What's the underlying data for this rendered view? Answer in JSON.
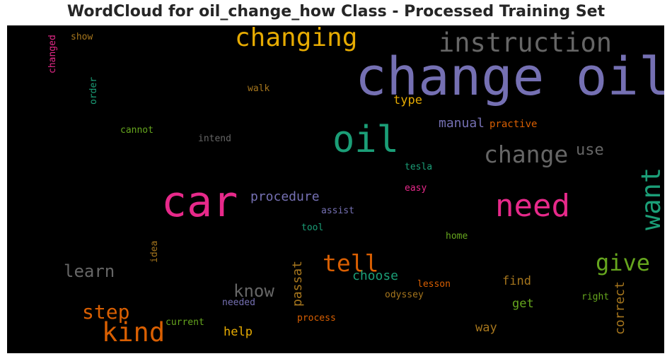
{
  "title": "WordCloud for oil_change_how Class - Processed Training Set",
  "colors": {
    "purple": "#7570b3",
    "pink": "#e7298a",
    "teal": "#1b9e77",
    "orange": "#d95f02",
    "gold": "#e6ab02",
    "olive": "#66a61e",
    "grey": "#666666",
    "brown": "#a6761d"
  },
  "words": [
    {
      "text": "change oil",
      "color": "purple"
    },
    {
      "text": "car",
      "color": "pink"
    },
    {
      "text": "oil",
      "color": "teal"
    },
    {
      "text": "changing",
      "color": "gold"
    },
    {
      "text": "instruction",
      "color": "grey"
    },
    {
      "text": "need",
      "color": "pink"
    },
    {
      "text": "change",
      "color": "grey"
    },
    {
      "text": "kind",
      "color": "orange"
    },
    {
      "text": "want",
      "color": "teal"
    },
    {
      "text": "give",
      "color": "olive"
    },
    {
      "text": "tell",
      "color": "orange"
    },
    {
      "text": "step",
      "color": "orange"
    },
    {
      "text": "learn",
      "color": "grey"
    },
    {
      "text": "know",
      "color": "grey"
    },
    {
      "text": "use",
      "color": "grey"
    },
    {
      "text": "procedure",
      "color": "purple"
    },
    {
      "text": "manual",
      "color": "purple"
    },
    {
      "text": "passat",
      "color": "brown"
    },
    {
      "text": "correct",
      "color": "brown"
    },
    {
      "text": "type",
      "color": "gold"
    },
    {
      "text": "choose",
      "color": "teal"
    },
    {
      "text": "find",
      "color": "brown"
    },
    {
      "text": "help",
      "color": "gold"
    },
    {
      "text": "way",
      "color": "brown"
    },
    {
      "text": "get",
      "color": "olive"
    },
    {
      "text": "practive",
      "color": "orange"
    },
    {
      "text": "tesla",
      "color": "teal"
    },
    {
      "text": "easy",
      "color": "pink"
    },
    {
      "text": "assist",
      "color": "purple"
    },
    {
      "text": "tool",
      "color": "teal"
    },
    {
      "text": "home",
      "color": "olive"
    },
    {
      "text": "lesson",
      "color": "orange"
    },
    {
      "text": "odyssey",
      "color": "brown"
    },
    {
      "text": "right",
      "color": "olive"
    },
    {
      "text": "process",
      "color": "orange"
    },
    {
      "text": "needed",
      "color": "purple"
    },
    {
      "text": "current",
      "color": "olive"
    },
    {
      "text": "idea",
      "color": "brown"
    },
    {
      "text": "cannot",
      "color": "olive"
    },
    {
      "text": "intend",
      "color": "grey"
    },
    {
      "text": "walk",
      "color": "brown"
    },
    {
      "text": "show",
      "color": "brown"
    },
    {
      "text": "changed",
      "color": "pink"
    },
    {
      "text": "order",
      "color": "teal"
    }
  ]
}
